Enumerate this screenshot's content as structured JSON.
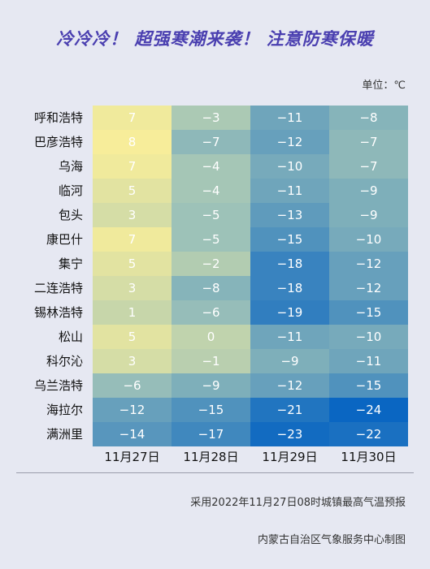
{
  "title": "冷冷冷！ 超强寒潮来袭！ 注意防寒保暖",
  "unit": "单位：℃",
  "footer": {
    "source": "采用2022年11月27日08时城镇最高气温预报",
    "credit": "内蒙古自治区气象服务中心制图"
  },
  "colors": {
    "warm": "#f7ed9a",
    "mid": "#9fc3b8",
    "cold": "#0a66c2",
    "title": "#4a3fb0",
    "background": "#e6e8f2"
  },
  "chart_data": {
    "type": "heatmap",
    "title": "冷冷冷！ 超强寒潮来袭！ 注意防寒保暖",
    "unit": "单位：℃",
    "columns": [
      "11月27日",
      "11月28日",
      "11月29日",
      "11月30日"
    ],
    "rows": [
      "呼和浩特",
      "巴彦浩特",
      "乌海",
      "临河",
      "包头",
      "康巴什",
      "集宁",
      "二连浩特",
      "锡林浩特",
      "松山",
      "科尔沁",
      "乌兰浩特",
      "海拉尔",
      "满洲里"
    ],
    "values": [
      [
        7,
        -3,
        -11,
        -8
      ],
      [
        8,
        -7,
        -12,
        -7
      ],
      [
        7,
        -4,
        -10,
        -7
      ],
      [
        5,
        -4,
        -11,
        -9
      ],
      [
        3,
        -5,
        -13,
        -9
      ],
      [
        7,
        -5,
        -15,
        -10
      ],
      [
        5,
        -2,
        -18,
        -12
      ],
      [
        3,
        -8,
        -18,
        -12
      ],
      [
        1,
        -6,
        -19,
        -15
      ],
      [
        5,
        0,
        -11,
        -10
      ],
      [
        3,
        -1,
        -9,
        -11
      ],
      [
        -6,
        -9,
        -12,
        -15
      ],
      [
        -12,
        -15,
        -21,
        -24
      ],
      [
        -14,
        -17,
        -23,
        -22
      ]
    ],
    "color_scale": {
      "min": -24,
      "max": 8
    }
  }
}
